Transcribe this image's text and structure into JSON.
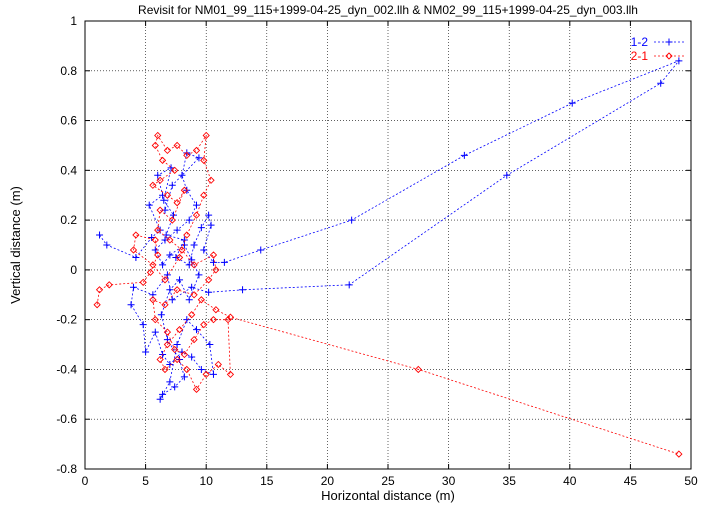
{
  "chart_data": {
    "type": "line",
    "title": "Revisit for NM01_99_115+1999-04-25_dyn_002.llh & NM02_99_115+1999-04-25_dyn_003.llh",
    "xlabel": "Horizontal distance (m)",
    "ylabel": "Vertical distance (m)",
    "xlim": [
      0,
      50
    ],
    "ylim": [
      -0.8,
      1
    ],
    "xticks": [
      0,
      5,
      10,
      15,
      20,
      25,
      30,
      35,
      40,
      45,
      50
    ],
    "yticks": [
      -0.8,
      -0.6,
      -0.4,
      -0.2,
      0,
      0.2,
      0.4,
      0.6,
      0.8,
      1
    ],
    "xtick_labels": [
      "0",
      "5",
      "10",
      "15",
      "20",
      "25",
      "30",
      "35",
      "40",
      "45",
      "50"
    ],
    "ytick_labels": [
      "-0.8",
      "-0.6",
      "-0.4",
      "-0.2",
      "0",
      "0.2",
      "0.4",
      "0.6",
      "0.8",
      "1"
    ],
    "grid": true,
    "legend_position": "top-right",
    "series": [
      {
        "name": "1-2",
        "color": "#0000ff",
        "marker": "plus",
        "points": [
          [
            1.2,
            0.14
          ],
          [
            1.8,
            0.1
          ],
          [
            4.2,
            0.05
          ],
          [
            5.5,
            0.13
          ],
          [
            6.2,
            0.16
          ],
          [
            5.3,
            0.26
          ],
          [
            6.4,
            0.3
          ],
          [
            6.0,
            0.38
          ],
          [
            7.1,
            0.41
          ],
          [
            6.5,
            0.28
          ],
          [
            7.3,
            0.22
          ],
          [
            6.7,
            0.14
          ],
          [
            8.2,
            0.12
          ],
          [
            7.5,
            0.05
          ],
          [
            8.6,
            0.02
          ],
          [
            9.0,
            0.1
          ],
          [
            9.6,
            0.17
          ],
          [
            10.2,
            0.22
          ],
          [
            10.4,
            0.18
          ],
          [
            9.8,
            0.08
          ],
          [
            10.6,
            0.03
          ],
          [
            11.5,
            0.03
          ],
          [
            14.5,
            0.08
          ],
          [
            22.0,
            0.2
          ],
          [
            31.3,
            0.46
          ],
          [
            40.2,
            0.67
          ],
          [
            49.0,
            0.84
          ],
          [
            47.5,
            0.75
          ],
          [
            34.8,
            0.38
          ],
          [
            21.8,
            -0.06
          ],
          [
            13.0,
            -0.08
          ],
          [
            10.2,
            -0.09
          ],
          [
            8.8,
            -0.07
          ],
          [
            7.2,
            -0.12
          ],
          [
            6.8,
            -0.02
          ],
          [
            5.6,
            -0.1
          ],
          [
            4.0,
            -0.07
          ],
          [
            3.8,
            -0.14
          ],
          [
            4.8,
            -0.22
          ],
          [
            5.0,
            -0.33
          ],
          [
            5.8,
            -0.25
          ],
          [
            6.4,
            -0.34
          ],
          [
            7.0,
            -0.38
          ],
          [
            8.0,
            -0.33
          ],
          [
            8.8,
            -0.35
          ],
          [
            9.6,
            -0.4
          ],
          [
            10.6,
            -0.42
          ],
          [
            10.3,
            -0.3
          ],
          [
            9.2,
            -0.24
          ],
          [
            8.4,
            -0.2
          ],
          [
            7.6,
            -0.3
          ],
          [
            7.0,
            -0.45
          ],
          [
            6.2,
            -0.52
          ],
          [
            6.4,
            -0.5
          ],
          [
            7.4,
            -0.47
          ],
          [
            8.2,
            -0.43
          ],
          [
            7.8,
            -0.36
          ],
          [
            6.8,
            -0.28
          ],
          [
            6.3,
            -0.18
          ],
          [
            7.0,
            -0.08
          ],
          [
            7.8,
            -0.04
          ],
          [
            8.6,
            -0.12
          ],
          [
            9.4,
            -0.02
          ],
          [
            8.8,
            0.04
          ],
          [
            8.2,
            0.1
          ],
          [
            7.0,
            0.06
          ],
          [
            6.4,
            0.02
          ],
          [
            5.8,
            0.08
          ],
          [
            6.6,
            0.12
          ],
          [
            7.6,
            0.16
          ],
          [
            8.6,
            0.2
          ],
          [
            9.2,
            0.26
          ],
          [
            8.4,
            0.32
          ],
          [
            8.0,
            0.38
          ],
          [
            8.4,
            0.47
          ],
          [
            9.4,
            0.45
          ],
          [
            7.2,
            0.34
          ],
          [
            6.6,
            0.24
          ]
        ]
      },
      {
        "name": "2-1",
        "color": "#ff0000",
        "marker": "diamond",
        "points": [
          [
            1.0,
            -0.14
          ],
          [
            1.2,
            -0.08
          ],
          [
            2.0,
            -0.06
          ],
          [
            4.8,
            -0.05
          ],
          [
            5.4,
            -0.01
          ],
          [
            6.0,
            0.06
          ],
          [
            5.8,
            0.12
          ],
          [
            4.2,
            0.14
          ],
          [
            4.0,
            0.08
          ],
          [
            5.6,
            0.02
          ],
          [
            6.6,
            -0.04
          ],
          [
            7.8,
            0.05
          ],
          [
            8.4,
            0.14
          ],
          [
            9.2,
            0.22
          ],
          [
            9.8,
            0.3
          ],
          [
            10.4,
            0.36
          ],
          [
            9.8,
            0.44
          ],
          [
            10.0,
            0.54
          ],
          [
            9.2,
            0.48
          ],
          [
            8.4,
            0.46
          ],
          [
            7.6,
            0.5
          ],
          [
            6.8,
            0.48
          ],
          [
            6.0,
            0.54
          ],
          [
            5.8,
            0.5
          ],
          [
            6.4,
            0.44
          ],
          [
            7.4,
            0.4
          ],
          [
            6.2,
            0.36
          ],
          [
            5.6,
            0.34
          ],
          [
            6.8,
            0.3
          ],
          [
            7.6,
            0.27
          ],
          [
            8.2,
            0.32
          ],
          [
            7.2,
            0.2
          ],
          [
            6.2,
            0.24
          ],
          [
            6.0,
            0.16
          ],
          [
            7.0,
            0.12
          ],
          [
            8.0,
            0.08
          ],
          [
            9.0,
            0.02
          ],
          [
            10.6,
            0.06
          ],
          [
            10.8,
            0.0
          ],
          [
            10.2,
            -0.04
          ],
          [
            9.0,
            -0.1
          ],
          [
            7.6,
            -0.08
          ],
          [
            6.6,
            -0.14
          ],
          [
            5.6,
            -0.12
          ],
          [
            5.8,
            -0.2
          ],
          [
            6.8,
            -0.25
          ],
          [
            7.4,
            -0.32
          ],
          [
            8.2,
            -0.34
          ],
          [
            9.0,
            -0.28
          ],
          [
            9.8,
            -0.22
          ],
          [
            10.6,
            -0.2
          ],
          [
            11.8,
            -0.2
          ],
          [
            12.0,
            -0.42
          ],
          [
            11.0,
            -0.38
          ],
          [
            10.0,
            -0.42
          ],
          [
            9.2,
            -0.48
          ],
          [
            8.4,
            -0.4
          ],
          [
            7.6,
            -0.36
          ],
          [
            6.6,
            -0.4
          ],
          [
            6.2,
            -0.36
          ],
          [
            6.8,
            -0.3
          ],
          [
            7.8,
            -0.24
          ],
          [
            8.8,
            -0.18
          ],
          [
            9.6,
            -0.12
          ],
          [
            10.8,
            -0.16
          ],
          [
            12.0,
            -0.19
          ],
          [
            27.5,
            -0.4
          ],
          [
            49.0,
            -0.74
          ]
        ]
      }
    ]
  }
}
